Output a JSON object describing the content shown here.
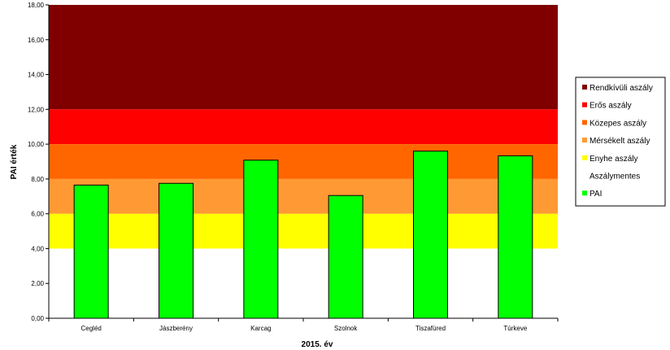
{
  "chart_data": {
    "type": "bar",
    "title": "",
    "xlabel": "2015. év",
    "ylabel": "PAI érték",
    "ylim": [
      0,
      18
    ],
    "ytick_step": 2,
    "categories": [
      "Cegléd",
      "Jászberény",
      "Karcag",
      "Szolnok",
      "Tiszafüred",
      "Túrkeve"
    ],
    "series": [
      {
        "name": "PAI",
        "values": [
          7.65,
          7.75,
          9.08,
          7.05,
          9.6,
          9.33
        ],
        "color": "#00ff00"
      }
    ],
    "bands": [
      {
        "name": "Rendkívüli aszály",
        "from": 12,
        "to": 18,
        "color": "#800000"
      },
      {
        "name": "Erős aszály",
        "from": 10,
        "to": 12,
        "color": "#ff0000"
      },
      {
        "name": "Közepes aszály",
        "from": 8,
        "to": 10,
        "color": "#ff6600"
      },
      {
        "name": "Mérsékelt aszály",
        "from": 6,
        "to": 8,
        "color": "#ff9933"
      },
      {
        "name": "Enyhe aszály",
        "from": 4,
        "to": 6,
        "color": "#ffff00"
      },
      {
        "name": "Aszálymentes",
        "from": 0,
        "to": 4,
        "color": "#ffffff"
      }
    ],
    "legend": {
      "position": "right",
      "entries": [
        {
          "label": "Rendkívüli aszály",
          "color": "#800000"
        },
        {
          "label": "Erős aszály",
          "color": "#ff0000"
        },
        {
          "label": "Közepes aszály",
          "color": "#ff6600"
        },
        {
          "label": "Mérsékelt aszály",
          "color": "#ff9933"
        },
        {
          "label": "Enyhe aszály",
          "color": "#ffff00"
        },
        {
          "label": "Aszálymentes",
          "color": "#ffffff"
        },
        {
          "label": "PAI",
          "color": "#00ff00"
        }
      ]
    },
    "grid": false
  }
}
